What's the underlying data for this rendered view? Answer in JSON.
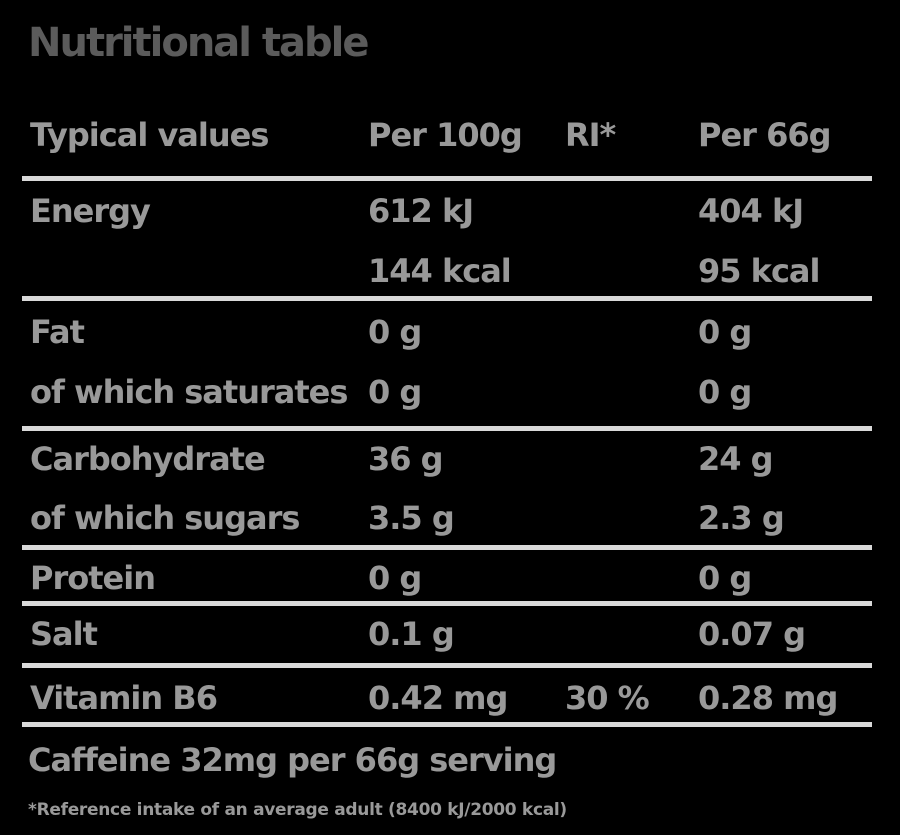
{
  "colors": {
    "background": "#000000",
    "title_text": "#5b5b5b",
    "body_text": "#999999",
    "divider": "#d9d9d9"
  },
  "title": "Nutritional table",
  "table": {
    "headers": {
      "label": "Typical values",
      "per100": "Per 100g",
      "ri": "RI*",
      "per66": "Per 66g"
    },
    "rows": [
      {
        "label": "Energy",
        "per100": "612 kJ",
        "ri": "",
        "per66": "404 kJ"
      },
      {
        "label": "",
        "per100": "144 kcal",
        "ri": "",
        "per66": "95 kcal"
      },
      {
        "label": "Fat",
        "per100": "0 g",
        "ri": "",
        "per66": "0 g"
      },
      {
        "label": "of which saturates",
        "per100": "0 g",
        "ri": "",
        "per66": "0 g"
      },
      {
        "label": "Carbohydrate",
        "per100": "36 g",
        "ri": "",
        "per66": "24 g"
      },
      {
        "label": "of which sugars",
        "per100": "3.5 g",
        "ri": "",
        "per66": "2.3 g"
      },
      {
        "label": "Protein",
        "per100": "0 g",
        "ri": "",
        "per66": "0 g"
      },
      {
        "label": "Salt",
        "per100": "0.1 g",
        "ri": "",
        "per66": "0.07 g"
      },
      {
        "label": "Vitamin B6",
        "per100": "0.42 mg",
        "ri": "30 %",
        "per66": "0.28 mg"
      }
    ]
  },
  "caffeine_note": "Caffeine 32mg per 66g serving",
  "footnote": "*Reference intake of an average adult (8400 kJ/2000 kcal)"
}
